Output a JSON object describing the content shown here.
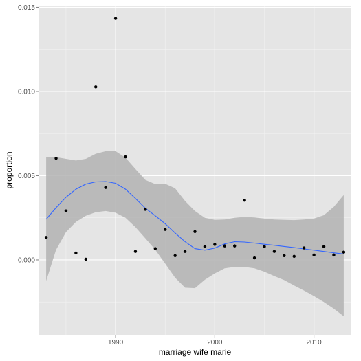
{
  "chart_data": {
    "type": "scatter",
    "xlabel": "marriage wife marie",
    "ylabel": "proportion",
    "xlim": [
      1982.3,
      2013.7
    ],
    "ylim": [
      -0.00445,
      0.0151
    ],
    "x_ticks": [
      1990,
      2000,
      2010
    ],
    "x_tick_labels": [
      "1990",
      "2000",
      "2010"
    ],
    "y_ticks": [
      0.0,
      0.005,
      0.01,
      0.015
    ],
    "y_tick_labels": [
      "0.000",
      "0.005",
      "0.010",
      "0.015"
    ],
    "grid": true,
    "points": {
      "x": [
        1983,
        1984,
        1985,
        1986,
        1987,
        1988,
        1989,
        1990,
        1991,
        1992,
        1993,
        1994,
        1995,
        1996,
        1997,
        1998,
        1999,
        2000,
        2001,
        2002,
        2003,
        2004,
        2005,
        2006,
        2007,
        2008,
        2009,
        2010,
        2011,
        2012,
        2013
      ],
      "y": [
        0.00133,
        0.00603,
        0.00291,
        0.00041,
        4e-05,
        0.01027,
        0.0043,
        0.01434,
        0.00612,
        0.0005,
        0.003,
        0.00067,
        0.00181,
        0.00025,
        0.0005,
        0.00168,
        0.00079,
        0.00092,
        0.00083,
        0.00083,
        0.00354,
        0.00012,
        0.00079,
        0.0005,
        0.00025,
        0.00021,
        0.00071,
        0.00029,
        0.00079,
        0.00029,
        0.00046
      ]
    },
    "smooth": {
      "color": "#3366ff",
      "x": [
        1983,
        1984,
        1985,
        1986,
        1987,
        1988,
        1989,
        1990,
        1991,
        1992,
        1993,
        1994,
        1995,
        1996,
        1997,
        1998,
        1999,
        2000,
        2001,
        2002,
        2003,
        2004,
        2005,
        2006,
        2007,
        2008,
        2009,
        2010,
        2011,
        2012,
        2013
      ],
      "y": [
        0.00241,
        0.0031,
        0.00372,
        0.0042,
        0.0045,
        0.00463,
        0.00465,
        0.00455,
        0.0042,
        0.00365,
        0.00307,
        0.00262,
        0.00215,
        0.0016,
        0.00108,
        0.00067,
        0.00058,
        0.0007,
        0.00095,
        0.00108,
        0.00106,
        0.001,
        0.00093,
        0.00087,
        0.0008,
        0.00073,
        0.00065,
        0.00058,
        0.0005,
        0.00042,
        0.00035
      ],
      "lower": [
        -0.00125,
        0.0006,
        0.00165,
        0.00225,
        0.00262,
        0.00283,
        0.0029,
        0.0028,
        0.0025,
        0.00195,
        0.00128,
        0.0006,
        -0.00022,
        -0.00105,
        -0.00165,
        -0.00168,
        -0.00118,
        -0.0008,
        -0.0005,
        -0.00042,
        -0.00042,
        -0.0005,
        -0.0007,
        -0.00096,
        -0.0012,
        -0.00152,
        -0.00182,
        -0.00215,
        -0.0025,
        -0.0029,
        -0.00335
      ],
      "upper": [
        0.00608,
        0.0061,
        0.006,
        0.0059,
        0.006,
        0.0063,
        0.00645,
        0.00645,
        0.00607,
        0.0054,
        0.00475,
        0.0045,
        0.00452,
        0.00425,
        0.0035,
        0.0029,
        0.0025,
        0.00238,
        0.0024,
        0.0025,
        0.00255,
        0.00252,
        0.00245,
        0.0024,
        0.00238,
        0.00236,
        0.0024,
        0.00245,
        0.00265,
        0.00315,
        0.00385
      ]
    },
    "colors": {
      "panel_background": "#e5e5e5",
      "grid_major": "#ffffff",
      "grid_minor": "#f2f2f2",
      "band": "#b3b3b3",
      "point": "#000000"
    }
  }
}
